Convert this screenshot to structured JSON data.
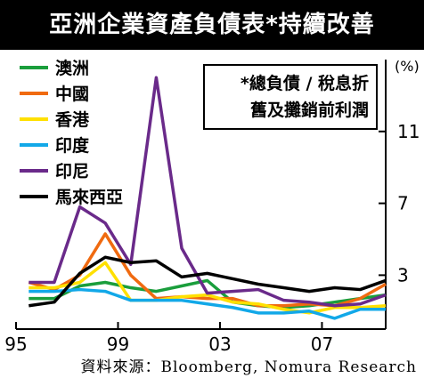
{
  "title": "亞洲企業資產負債表*持續改善",
  "note": {
    "line1": "*總負債 / 稅息折",
    "line2": "舊及攤銷前利潤"
  },
  "source": "資料來源：Bloomberg, Nomura Research",
  "chart_data": {
    "type": "line",
    "y_unit": "(%)",
    "ylim": [
      0,
      15
    ],
    "yticks": [
      3,
      7,
      11
    ],
    "xlim": [
      1995,
      2009.5
    ],
    "xticks": [
      {
        "label": "95",
        "value": 1995
      },
      {
        "label": "99",
        "value": 1999
      },
      {
        "label": "03",
        "value": 2003
      },
      {
        "label": "07",
        "value": 2007
      }
    ],
    "grid": false,
    "legend_position": "top-left",
    "x": [
      1995.5,
      1996.5,
      1997.5,
      1998.5,
      1999.5,
      2000.5,
      2001.5,
      2002.5,
      2003.5,
      2004.5,
      2005.5,
      2006.5,
      2007.5,
      2008.5,
      2009.5
    ],
    "series": [
      {
        "name": "澳洲",
        "color": "#1a9e3c",
        "values": [
          1.7,
          1.7,
          2.4,
          2.6,
          2.3,
          2.1,
          2.4,
          2.7,
          1.5,
          1.3,
          1.2,
          1.3,
          1.5,
          1.7,
          1.9
        ]
      },
      {
        "name": "中國",
        "color": "#f06a10",
        "values": [
          2.6,
          2.2,
          3.0,
          5.3,
          3.0,
          1.7,
          1.8,
          1.7,
          1.7,
          1.3,
          1.3,
          1.4,
          1.3,
          1.7,
          2.5
        ]
      },
      {
        "name": "香港",
        "color": "#ffe000",
        "values": [
          2.3,
          2.3,
          2.6,
          3.7,
          1.6,
          1.6,
          1.8,
          1.9,
          1.5,
          1.4,
          1.1,
          0.9,
          1.2,
          1.2,
          1.3
        ]
      },
      {
        "name": "印度",
        "color": "#12a8e8",
        "values": [
          2.1,
          2.1,
          2.2,
          2.1,
          1.6,
          1.6,
          1.6,
          1.4,
          1.2,
          0.9,
          0.9,
          1.0,
          0.6,
          1.1,
          1.1
        ]
      },
      {
        "name": "印尼",
        "color": "#6a2a8a",
        "values": [
          2.6,
          2.6,
          6.8,
          5.9,
          3.6,
          14.0,
          4.5,
          2.0,
          2.1,
          2.2,
          1.6,
          1.5,
          1.3,
          1.4,
          1.9
        ]
      },
      {
        "name": "馬來西亞",
        "color": "#000000",
        "values": [
          1.3,
          1.5,
          3.1,
          4.0,
          3.7,
          3.8,
          2.9,
          3.1,
          2.8,
          2.5,
          2.3,
          2.1,
          2.3,
          2.2,
          2.7
        ]
      }
    ]
  }
}
